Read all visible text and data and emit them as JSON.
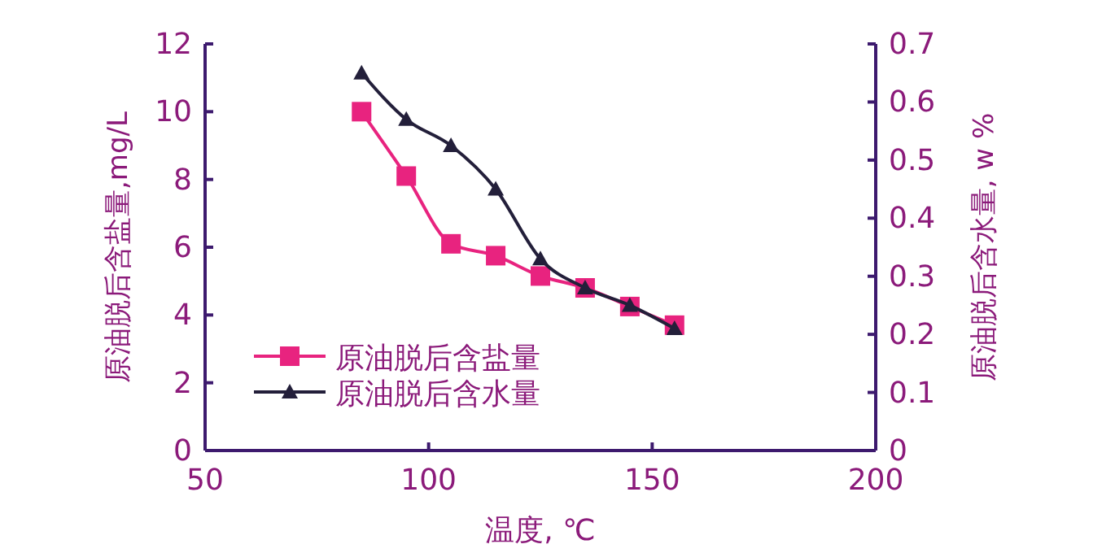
{
  "chart_data": {
    "type": "line",
    "xlabel": "温度, ℃",
    "ylabel": "原油脱后含盐量,mg/L",
    "y2label": "原油脱后含水量, w %",
    "x": [
      85,
      95,
      105,
      115,
      125,
      135,
      145,
      155
    ],
    "series": [
      {
        "name": "原油脱后含盐量",
        "color": "#e8237f",
        "marker": "square",
        "values": [
          10,
          8.1,
          6.1,
          5.75,
          5.15,
          4.8,
          4.25,
          3.7
        ]
      },
      {
        "name": "原油脱后含水量",
        "color": "#231f3a",
        "marker": "triangle",
        "axis": "y2",
        "values": [
          0.65,
          0.57,
          0.525,
          0.45,
          0.33,
          0.28,
          0.25,
          0.21
        ]
      }
    ],
    "xlim": [
      50,
      200
    ],
    "xticks": [
      50,
      100,
      150,
      200
    ],
    "ylim": [
      0,
      12
    ],
    "yticks": [
      0,
      2,
      4,
      6,
      8,
      10,
      12
    ],
    "y2lim": [
      0,
      0.7
    ],
    "y2ticks": [
      0,
      0.1,
      0.2,
      0.3,
      0.4,
      0.5,
      0.6,
      0.7
    ],
    "legend": "bottom left",
    "grid": false,
    "line_style": "solid"
  }
}
